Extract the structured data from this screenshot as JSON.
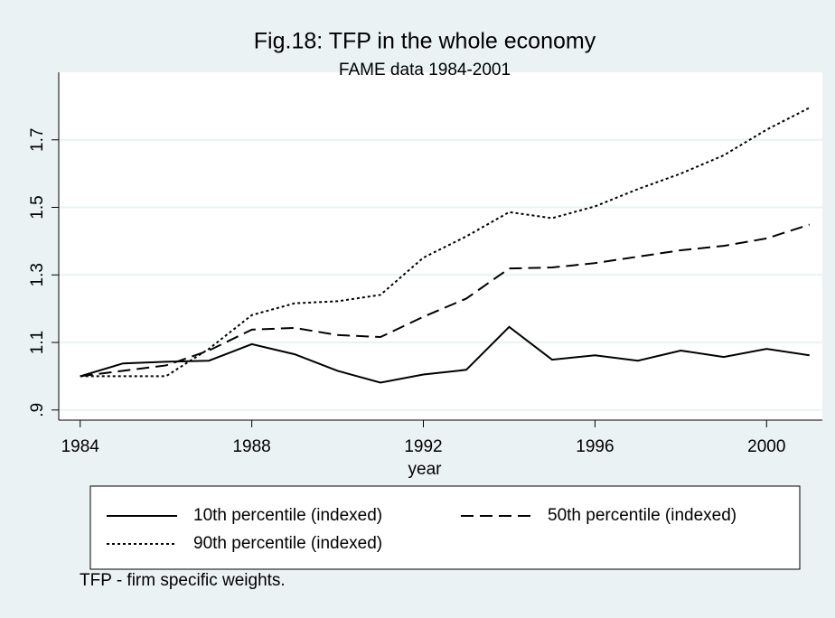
{
  "chart_data": {
    "type": "line",
    "title": "Fig.18: TFP in the whole economy",
    "subtitle": "FAME data 1984-2001",
    "x_label": "year",
    "note": "TFP - firm specific weights.",
    "x": [
      1984,
      1985,
      1986,
      1987,
      1988,
      1989,
      1990,
      1991,
      1992,
      1993,
      1994,
      1995,
      1996,
      1997,
      1998,
      1999,
      2000,
      2001
    ],
    "series": [
      {
        "name": "10th percentile (indexed)",
        "color": "#000000",
        "dash": "none",
        "values": [
          1.0,
          1.038,
          1.043,
          1.046,
          1.095,
          1.065,
          1.016,
          0.981,
          1.005,
          1.019,
          1.146,
          1.049,
          1.062,
          1.046,
          1.076,
          1.057,
          1.081,
          1.062
        ]
      },
      {
        "name": "50th percentile (indexed)",
        "color": "#000000",
        "dash": "14,7",
        "values": [
          1.0,
          1.016,
          1.032,
          1.076,
          1.138,
          1.143,
          1.122,
          1.116,
          1.176,
          1.23,
          1.319,
          1.322,
          1.335,
          1.354,
          1.373,
          1.386,
          1.408,
          1.449
        ]
      },
      {
        "name": "90th percentile (indexed)",
        "color": "#000000",
        "dash": "3,3",
        "values": [
          1.0,
          1.0,
          1.0,
          1.081,
          1.181,
          1.216,
          1.222,
          1.241,
          1.351,
          1.414,
          1.486,
          1.468,
          1.503,
          1.554,
          1.6,
          1.654,
          1.73,
          1.795
        ]
      }
    ],
    "xlim": [
      1983.5,
      2001.3
    ],
    "xticks": [
      1984,
      1988,
      1992,
      1996,
      2000
    ],
    "ylim": [
      0.87,
      1.9
    ],
    "yticks": [
      {
        "value": 0.9,
        "label": ".9"
      },
      1.1,
      1.3,
      1.5,
      1.7
    ],
    "grid": true
  }
}
